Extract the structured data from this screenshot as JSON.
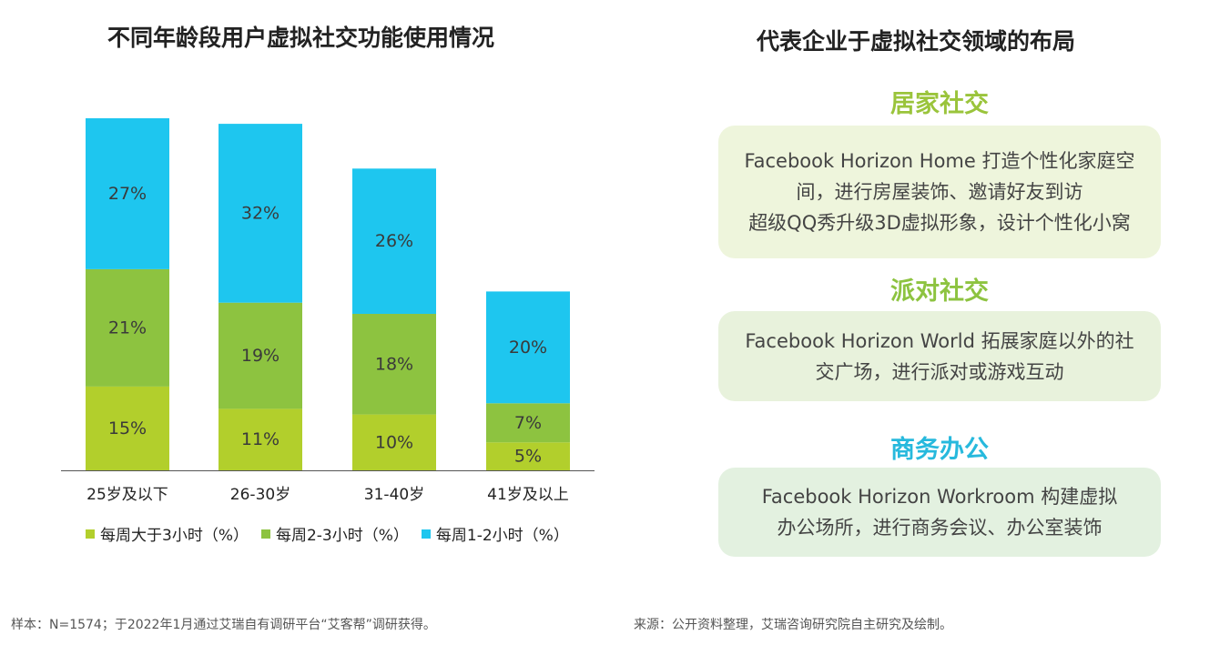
{
  "left_title": "不同年龄段用户虚拟社交功能使用情况",
  "right_title": "代表企业于虚拟社交领域的布局",
  "chart_data": {
    "type": "bar",
    "stacked": true,
    "categories": [
      "25岁及以下",
      "26-30岁",
      "31-40岁",
      "41岁及以上"
    ],
    "series": [
      {
        "name": "每周大于3小时（%）",
        "values": [
          15,
          11,
          10,
          5
        ],
        "labels": [
          "15%",
          "11%",
          "10%",
          "5%"
        ],
        "color": "#b2cf2c"
      },
      {
        "name": "每周2-3小时（%）",
        "values": [
          21,
          19,
          18,
          7
        ],
        "labels": [
          "21%",
          "19%",
          "18%",
          "7%"
        ],
        "color": "#8dc340"
      },
      {
        "name": "每周1-2小时（%）",
        "values": [
          27,
          32,
          26,
          20
        ],
        "labels": [
          "27%",
          "32%",
          "26%",
          "20%"
        ],
        "color": "#1ec6ef"
      }
    ],
    "ylim": [
      0,
      63
    ],
    "grid": false,
    "legend_position": "bottom"
  },
  "sections": [
    {
      "title": "居家社交",
      "title_color": "#9ac43b",
      "card_bg": "#eef5dc",
      "lines": [
        "Facebook Horizon Home 打造个性化家庭空",
        "间，进行房屋装饰、邀请好友到访",
        "超级QQ秀升级3D虚拟形象，设计个性化小窝"
      ]
    },
    {
      "title": "派对社交",
      "title_color": "#8dc340",
      "card_bg": "#e8f2dc",
      "lines": [
        "Facebook Horizon World 拓展家庭以外的社",
        "交广场，进行派对或游戏互动"
      ]
    },
    {
      "title": "商务办公",
      "title_color": "#27b9dd",
      "card_bg": "#e3f1e0",
      "lines": [
        "Facebook Horizon Workroom 构建虚拟",
        "办公场所，进行商务会议、办公室装饰"
      ]
    }
  ],
  "footnote_left": "样本：N=1574；于2022年1月通过艾瑞自有调研平台“艾客帮”调研获得。",
  "footnote_right": "来源：公开资料整理，艾瑞咨询研究院自主研究及绘制。"
}
